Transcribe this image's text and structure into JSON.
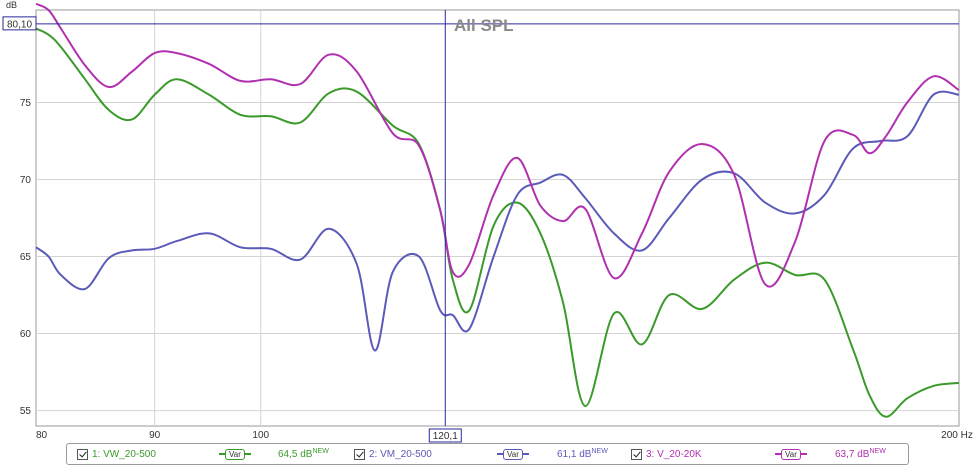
{
  "chart_data": {
    "type": "line",
    "title": "All SPL",
    "ylabel": "dB",
    "xunit": "Hz",
    "xlim": [
      80,
      200
    ],
    "ylim": [
      54,
      81
    ],
    "x_scale": "log",
    "grid": true,
    "x_ticks": [
      80,
      90,
      100,
      200
    ],
    "x_tick_labels": [
      "80",
      "90",
      "100",
      "200 Hz"
    ],
    "y_ticks": [
      55,
      60,
      65,
      70,
      75
    ],
    "cursor": {
      "x": 120.1,
      "y": 80.1,
      "x_label": "120,1",
      "y_label": "80,10",
      "color": "#2a2a9a"
    },
    "series": [
      {
        "name": "VW_20-500",
        "color": "#3a9a2a",
        "x": [
          80,
          81,
          82,
          84,
          86,
          88,
          90,
          92,
          95,
          98,
          101,
          104,
          107,
          110,
          114,
          117,
          119.5,
          121,
          123,
          126,
          129,
          132,
          135,
          138,
          142,
          146,
          150,
          155,
          160,
          165,
          170,
          175,
          180,
          183,
          186,
          190,
          195,
          200
        ],
        "y": [
          79.8,
          79.4,
          78.6,
          76.5,
          74.5,
          73.9,
          75.5,
          76.5,
          75.5,
          74.2,
          74.1,
          73.7,
          75.6,
          75.7,
          73.5,
          72.3,
          68.0,
          63.5,
          61.5,
          67.0,
          68.5,
          66.5,
          62.0,
          55.3,
          61.3,
          59.3,
          62.5,
          61.6,
          63.5,
          64.6,
          63.8,
          63.5,
          59.0,
          56.0,
          54.6,
          55.8,
          56.6,
          56.8
        ]
      },
      {
        "name": "VM_20-500",
        "color": "#5a5ab8",
        "x": [
          80,
          81,
          82,
          84,
          86,
          88,
          90,
          92,
          95,
          98,
          101,
          104,
          107,
          110,
          112,
          114,
          117,
          119.5,
          121,
          123,
          126,
          129,
          132,
          135,
          138,
          142,
          146,
          150,
          155,
          160,
          165,
          170,
          175,
          180,
          185,
          190,
          195,
          200
        ],
        "y": [
          65.6,
          65.0,
          63.8,
          62.9,
          64.9,
          65.4,
          65.5,
          66.0,
          66.5,
          65.6,
          65.5,
          64.8,
          66.8,
          64.5,
          58.9,
          64.0,
          65.0,
          61.5,
          61.2,
          60.3,
          65.0,
          69.0,
          69.8,
          70.3,
          68.8,
          66.5,
          65.4,
          67.5,
          70.0,
          70.4,
          68.5,
          67.8,
          69.0,
          72.0,
          72.5,
          72.8,
          75.5,
          75.5
        ]
      },
      {
        "name": "V_20-20K",
        "color": "#b030b0",
        "x": [
          80,
          81,
          82,
          84,
          86,
          88,
          90,
          92,
          95,
          98,
          101,
          104,
          107,
          110,
          114,
          117,
          119.5,
          121,
          123,
          126,
          129,
          132,
          135,
          138,
          142,
          146,
          150,
          155,
          160,
          165,
          170,
          175,
          180,
          183,
          186,
          190,
          195,
          200
        ],
        "y": [
          81.4,
          81.0,
          79.8,
          77.4,
          76.0,
          77.0,
          78.2,
          78.2,
          77.5,
          76.4,
          76.5,
          76.2,
          78.1,
          77.0,
          73.0,
          72.2,
          68.0,
          64.0,
          64.5,
          69.0,
          71.4,
          68.3,
          67.3,
          68.1,
          63.6,
          66.5,
          70.5,
          72.3,
          70.3,
          63.2,
          66.0,
          72.5,
          72.9,
          71.7,
          72.8,
          75.0,
          76.7,
          75.8
        ]
      }
    ]
  },
  "legend": {
    "entries": [
      {
        "label": "1: VW_20-500",
        "var": "Var",
        "value": "64,5 dB",
        "badge": "NEW",
        "color": "#3a9a2a"
      },
      {
        "label": "2: VM_20-500",
        "var": "Var",
        "value": "61,1 dB",
        "badge": "NEW",
        "color": "#5a5ab8"
      },
      {
        "label": "3: V_20-20K",
        "var": "Var",
        "value": "63,7 dB",
        "badge": "NEW",
        "color": "#b030b0"
      }
    ]
  }
}
